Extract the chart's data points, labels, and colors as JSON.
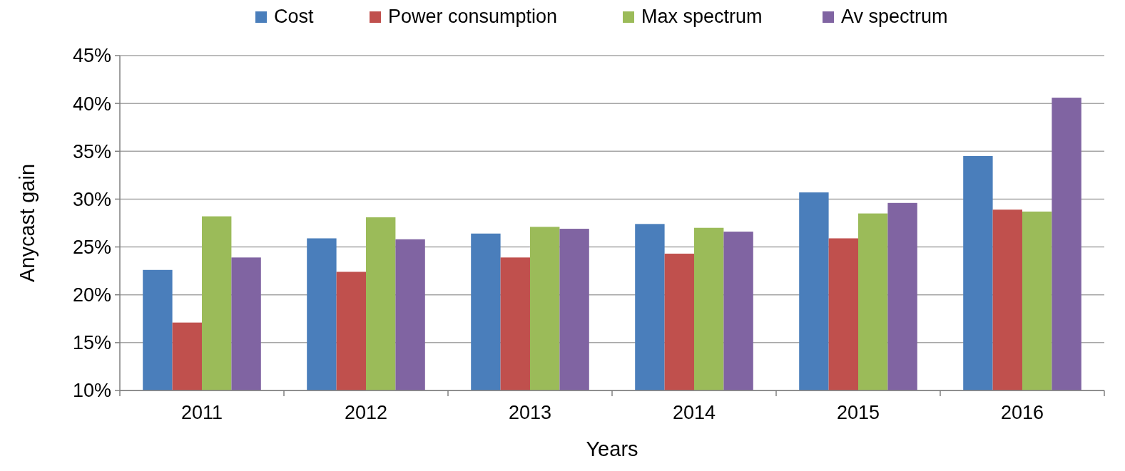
{
  "chart_data": {
    "type": "bar",
    "xlabel": "Years",
    "ylabel": "Anycast gain",
    "categories": [
      "2011",
      "2012",
      "2013",
      "2014",
      "2015",
      "2016"
    ],
    "series": [
      {
        "name": "Cost",
        "color": "#4a7ebb",
        "values": [
          22.6,
          25.9,
          26.4,
          27.4,
          30.7,
          34.5
        ]
      },
      {
        "name": "Power consumption",
        "color": "#c0504d",
        "values": [
          17.1,
          22.4,
          23.9,
          24.3,
          25.9,
          28.9
        ]
      },
      {
        "name": "Max spectrum",
        "color": "#9bbb59",
        "values": [
          28.2,
          28.1,
          27.1,
          27.0,
          28.5,
          28.7
        ]
      },
      {
        "name": "Av spectrum",
        "color": "#8064a2",
        "values": [
          23.9,
          25.8,
          26.9,
          26.6,
          29.6,
          40.6
        ]
      }
    ],
    "ylim": [
      10,
      45
    ],
    "yticks": [
      {
        "value": 10,
        "label": "10%"
      },
      {
        "value": 15,
        "label": "15%"
      },
      {
        "value": 20,
        "label": "20%"
      },
      {
        "value": 25,
        "label": "25%"
      },
      {
        "value": 30,
        "label": "30%"
      },
      {
        "value": 35,
        "label": "35%"
      },
      {
        "value": 40,
        "label": "40%"
      },
      {
        "value": 45,
        "label": "45%"
      }
    ],
    "grid": "y",
    "legend": "top"
  }
}
